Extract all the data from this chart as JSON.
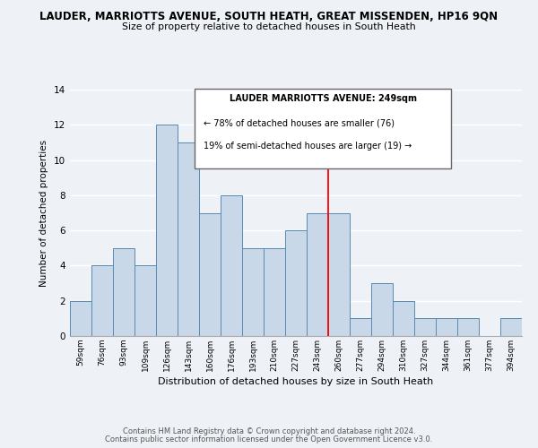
{
  "title": "LAUDER, MARRIOTTS AVENUE, SOUTH HEATH, GREAT MISSENDEN, HP16 9QN",
  "subtitle": "Size of property relative to detached houses in South Heath",
  "xlabel": "Distribution of detached houses by size in South Heath",
  "ylabel": "Number of detached properties",
  "bin_labels": [
    "59sqm",
    "76sqm",
    "93sqm",
    "109sqm",
    "126sqm",
    "143sqm",
    "160sqm",
    "176sqm",
    "193sqm",
    "210sqm",
    "227sqm",
    "243sqm",
    "260sqm",
    "277sqm",
    "294sqm",
    "310sqm",
    "327sqm",
    "344sqm",
    "361sqm",
    "377sqm",
    "394sqm"
  ],
  "bar_heights": [
    2,
    4,
    5,
    4,
    12,
    11,
    7,
    8,
    5,
    5,
    6,
    7,
    7,
    1,
    3,
    2,
    1,
    1,
    1,
    0,
    1
  ],
  "bar_color": "#c8d8e8",
  "bar_edgecolor": "#5a8ab0",
  "vline_color": "red",
  "vline_x_index": 11.5,
  "ylim": [
    0,
    14
  ],
  "yticks": [
    0,
    2,
    4,
    6,
    8,
    10,
    12,
    14
  ],
  "annotation_title": "LAUDER MARRIOTTS AVENUE: 249sqm",
  "annotation_line1": "← 78% of detached houses are smaller (76)",
  "annotation_line2": "19% of semi-detached houses are larger (19) →",
  "footer1": "Contains HM Land Registry data © Crown copyright and database right 2024.",
  "footer2": "Contains public sector information licensed under the Open Government Licence v3.0.",
  "background_color": "#eef2f7",
  "plot_background": "#eef2f7"
}
